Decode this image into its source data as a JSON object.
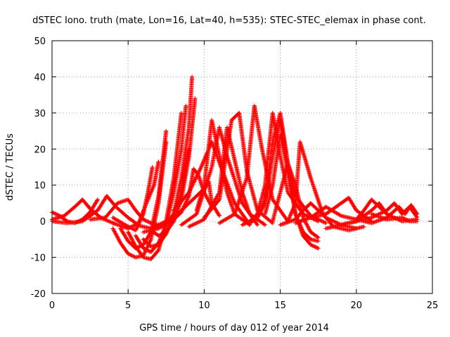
{
  "chart_data": {
    "type": "scatter",
    "title": "dSTEC Iono. truth (mate, Lon=16, Lat=40, h=535): STEC-STEC_elemax in phase cont.",
    "xlabel": "GPS time / hours of day 012 of year 2014",
    "ylabel": "dSTEC  / TECUs",
    "xlim": [
      0,
      25
    ],
    "ylim": [
      -20,
      50
    ],
    "xticks": [
      0,
      5,
      10,
      15,
      20,
      25
    ],
    "yticks": [
      -20,
      -10,
      0,
      10,
      20,
      30,
      40,
      50
    ],
    "grid": true,
    "legend": "none",
    "marker": "plus",
    "color": "#ff0000",
    "series": [
      {
        "x": [
          0.0,
          0.5,
          1.0,
          1.5,
          2.0,
          2.5,
          3.0
        ],
        "y": [
          2.5,
          1.5,
          0.0,
          -0.5,
          0.5,
          2.5,
          6.0
        ]
      },
      {
        "x": [
          0.0,
          0.8,
          1.5,
          2.0,
          2.5,
          3.2,
          4.0
        ],
        "y": [
          0.5,
          1.5,
          4.0,
          6.0,
          3.5,
          1.0,
          -0.5
        ]
      },
      {
        "x": [
          0.0,
          1.0,
          2.0,
          3.0,
          3.6,
          4.2,
          5.0,
          5.5
        ],
        "y": [
          0.0,
          -0.5,
          0.0,
          3.0,
          7.0,
          4.0,
          1.0,
          -0.5
        ]
      },
      {
        "x": [
          2.5,
          3.5,
          4.3,
          5.0,
          5.5,
          6.0,
          6.5,
          7.0
        ],
        "y": [
          0.5,
          1.0,
          5.0,
          6.0,
          3.0,
          0.5,
          -0.5,
          -1.0
        ]
      },
      {
        "x": [
          4.0,
          4.8,
          5.5,
          6.0,
          6.3,
          6.6
        ],
        "y": [
          1.0,
          -1.0,
          -2.5,
          2.0,
          8.0,
          15.0
        ]
      },
      {
        "x": [
          4.0,
          5.0,
          5.7,
          6.2,
          6.7,
          7.0
        ],
        "y": [
          -0.5,
          -2.0,
          -0.5,
          5.0,
          10.0,
          16.5
        ]
      },
      {
        "x": [
          4.0,
          4.5,
          5.0,
          5.5,
          6.0,
          6.5,
          7.0,
          7.5
        ],
        "y": [
          -2.0,
          -6.0,
          -9.0,
          -10.0,
          -9.5,
          -5.0,
          5.0,
          22.0
        ]
      },
      {
        "x": [
          4.5,
          5.0,
          5.5,
          6.0,
          6.5,
          7.0,
          7.5
        ],
        "y": [
          -2.0,
          -5.5,
          -7.5,
          -6.5,
          -3.0,
          7.0,
          25.0
        ]
      },
      {
        "x": [
          5.0,
          5.5,
          6.0,
          6.5,
          7.0,
          7.5,
          8.0,
          8.5
        ],
        "y": [
          -3.0,
          -7.0,
          -10.0,
          -10.5,
          -8.0,
          0.0,
          12.0,
          30.0
        ]
      },
      {
        "x": [
          5.5,
          6.0,
          6.5,
          7.0,
          7.5,
          8.0,
          8.5,
          8.8
        ],
        "y": [
          -4.0,
          -7.5,
          -8.5,
          -6.0,
          -1.0,
          8.0,
          20.0,
          32.0
        ]
      },
      {
        "x": [
          6.0,
          6.5,
          7.0,
          7.5,
          8.0,
          8.5,
          9.0,
          9.2
        ],
        "y": [
          -5.0,
          -7.0,
          -6.5,
          -3.5,
          2.0,
          12.0,
          26.0,
          40.0
        ]
      },
      {
        "x": [
          6.5,
          7.0,
          7.5,
          8.0,
          8.5,
          9.0,
          9.4
        ],
        "y": [
          -2.5,
          -4.0,
          -3.0,
          0.0,
          6.0,
          18.0,
          34.0
        ]
      },
      {
        "x": [
          5.5,
          6.5,
          7.5,
          8.0,
          8.5,
          9.0
        ],
        "y": [
          -1.0,
          -2.0,
          -0.5,
          2.0,
          8.0,
          20.0
        ]
      },
      {
        "x": [
          6.0,
          7.0,
          8.0,
          8.5,
          9.0,
          9.3,
          9.6,
          10.0,
          10.5
        ],
        "y": [
          -3.0,
          -2.0,
          0.5,
          2.5,
          7.0,
          14.5,
          13.0,
          8.0,
          4.0
        ]
      },
      {
        "x": [
          7.0,
          8.0,
          9.0,
          9.5,
          10.0,
          10.3,
          10.5,
          11.0
        ],
        "y": [
          -1.0,
          1.0,
          5.0,
          7.0,
          9.0,
          11.0,
          5.0,
          1.5
        ]
      },
      {
        "x": [
          8.0,
          9.0,
          9.8,
          10.5,
          11.2,
          12.0,
          13.0
        ],
        "y": [
          3.0,
          8.0,
          15.0,
          22.0,
          14.0,
          5.0,
          -1.0
        ]
      },
      {
        "x": [
          8.5,
          9.5,
          10.5,
          11.0,
          11.5,
          12.5,
          13.5
        ],
        "y": [
          -1.0,
          2.0,
          15.0,
          26.0,
          18.0,
          5.0,
          -1.0
        ]
      },
      {
        "x": [
          9.5,
          10.0,
          10.5,
          11.0,
          11.5,
          12.0,
          13.0
        ],
        "y": [
          3.0,
          10.0,
          28.0,
          18.0,
          8.0,
          2.0,
          -1.0
        ]
      },
      {
        "x": [
          9.0,
          10.0,
          11.0,
          11.5,
          12.0,
          12.5,
          13.0,
          14.0
        ],
        "y": [
          -1.5,
          0.5,
          8.0,
          26.0,
          17.0,
          8.0,
          2.0,
          -1.0
        ]
      },
      {
        "x": [
          10.0,
          11.0,
          11.8,
          12.3,
          12.8,
          13.5,
          14.5
        ],
        "y": [
          1.0,
          6.0,
          28.0,
          30.0,
          14.0,
          3.0,
          -0.5
        ]
      },
      {
        "x": [
          11.0,
          12.0,
          12.8,
          13.3,
          13.8,
          14.5,
          15.5
        ],
        "y": [
          -0.5,
          2.0,
          12.0,
          32.0,
          20.0,
          6.0,
          0.0
        ]
      },
      {
        "x": [
          12.5,
          13.0,
          13.5,
          14.0,
          14.5,
          15.0,
          15.5,
          16.5,
          17.5
        ],
        "y": [
          -1.0,
          0.0,
          2.0,
          10.0,
          30.0,
          18.0,
          8.0,
          2.0,
          0.0
        ]
      },
      {
        "x": [
          13.0,
          13.5,
          14.0,
          14.5,
          15.0,
          15.5,
          16.0,
          17.0,
          18.0
        ],
        "y": [
          -0.5,
          1.0,
          6.0,
          22.0,
          30.0,
          16.0,
          7.0,
          1.5,
          -0.5
        ]
      },
      {
        "x": [
          13.5,
          14.0,
          14.5,
          15.0,
          15.5,
          16.0,
          16.5,
          17.0,
          17.5
        ],
        "y": [
          1.0,
          5.0,
          18.0,
          28.0,
          16.0,
          2.0,
          -4.0,
          -6.5,
          -7.5
        ]
      },
      {
        "x": [
          14.0,
          14.5,
          15.0,
          15.5,
          16.0,
          16.5,
          17.0,
          17.5
        ],
        "y": [
          2.0,
          10.0,
          24.0,
          14.0,
          2.0,
          -3.0,
          -5.0,
          -5.5
        ]
      },
      {
        "x": [
          14.5,
          15.0,
          15.5,
          16.0,
          16.5,
          17.0,
          17.5
        ],
        "y": [
          0.0,
          8.0,
          16.0,
          10.0,
          1.0,
          -3.0,
          -4.5
        ]
      },
      {
        "x": [
          15.0,
          16.0,
          16.5,
          17.0,
          18.0,
          19.0,
          20.0
        ],
        "y": [
          -1.0,
          0.5,
          3.0,
          5.0,
          1.0,
          -1.0,
          -2.0
        ]
      },
      {
        "x": [
          15.5,
          16.0,
          16.3,
          17.0,
          17.8,
          18.5,
          19.5,
          20.5
        ],
        "y": [
          0.0,
          5.0,
          22.0,
          12.0,
          2.0,
          -1.5,
          -2.5,
          -1.5
        ]
      },
      {
        "x": [
          16.0,
          17.0,
          18.0,
          19.0,
          19.5,
          20.0,
          21.0
        ],
        "y": [
          -0.5,
          1.0,
          2.0,
          5.0,
          6.5,
          3.0,
          0.0
        ]
      },
      {
        "x": [
          17.0,
          18.0,
          19.0,
          20.0,
          20.5,
          21.0,
          22.0
        ],
        "y": [
          1.0,
          4.0,
          1.5,
          0.5,
          3.0,
          6.0,
          2.0
        ]
      },
      {
        "x": [
          18.0,
          19.0,
          20.0,
          21.0,
          21.5,
          22.0,
          23.0,
          24.0
        ],
        "y": [
          -2.0,
          -1.0,
          0.0,
          3.0,
          5.0,
          2.0,
          0.0,
          0.5
        ]
      },
      {
        "x": [
          19.0,
          20.0,
          21.0,
          22.0,
          22.5,
          23.0,
          23.5,
          24.0
        ],
        "y": [
          -1.0,
          0.0,
          1.0,
          3.0,
          5.0,
          2.0,
          4.0,
          1.0
        ]
      },
      {
        "x": [
          20.0,
          21.0,
          22.0,
          22.8,
          23.2,
          23.6,
          24.0
        ],
        "y": [
          0.5,
          -0.5,
          1.0,
          4.0,
          2.0,
          4.5,
          2.0
        ]
      },
      {
        "x": [
          21.0,
          22.0,
          23.0,
          23.5,
          24.0
        ],
        "y": [
          2.0,
          0.5,
          1.0,
          0.0,
          0.0
        ]
      }
    ]
  }
}
